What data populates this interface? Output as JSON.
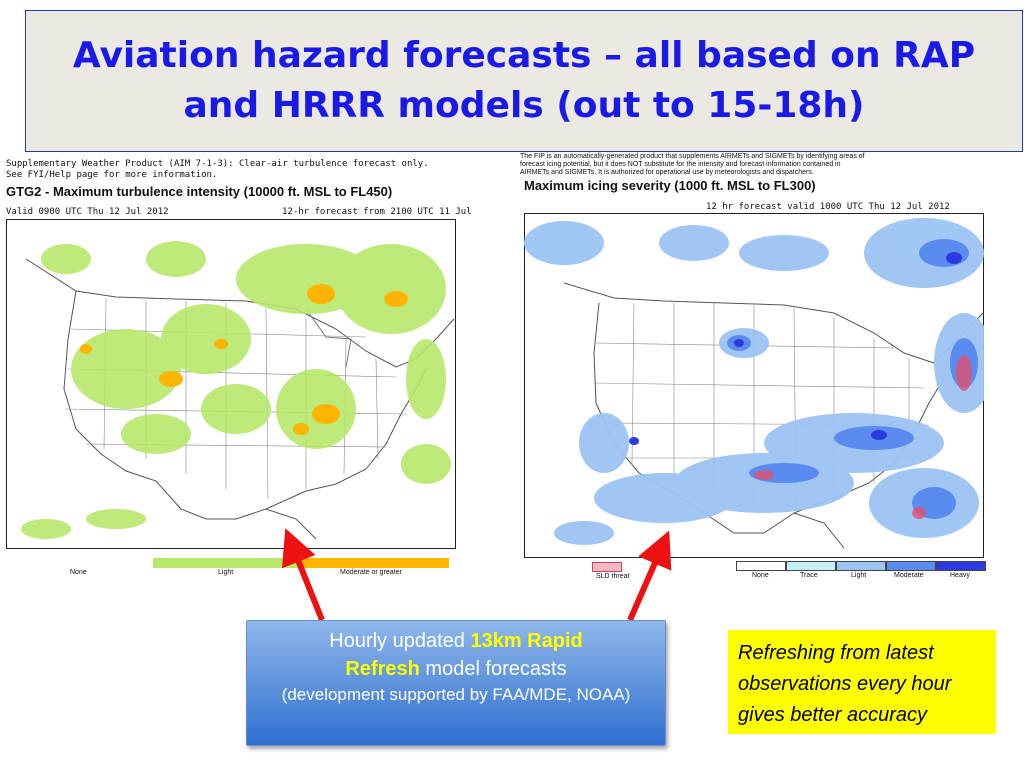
{
  "title": "Aviation hazard forecasts – all based on RAP and HRRR models (out to 15-18h)",
  "left_panel": {
    "header_line1": "Supplementary Weather Product (AIM 7-1-3): Clear-air turbulence forecast only.",
    "header_line2": "See FYI/Help page for more information.",
    "product_title": "GTG2 - Maximum turbulence intensity (10000 ft. MSL to FL450)",
    "valid_text": "Valid 0900 UTC Thu 12 Jul 2012",
    "forecast_text": "12-hr forecast from 2100 UTC 11 Jul",
    "legend": [
      {
        "label": "None",
        "color": "#ffffff"
      },
      {
        "label": "Light",
        "color": "#b6e86a"
      },
      {
        "label": "Moderate or greater",
        "color": "#ffb400"
      }
    ]
  },
  "right_panel": {
    "header_line1": "The FIP is an automatically-generated product that supplements AIRMETs and SIGMETs by identifying areas of",
    "header_line2": "forecast icing potential, but it does NOT substitute for the intensity and forecast information contained in",
    "header_line3": "AIRMETs and SIGMETs.  It is authorized for operational use by meteorologists and dispatchers.",
    "product_title": "Maximum icing severity (1000 ft. MSL to FL300)",
    "forecast_text": "12 hr forecast valid 1000 UTC Thu 12 Jul 2012",
    "sld_label": "SLD threat",
    "legend": [
      {
        "label": "None",
        "color": "#ffffff"
      },
      {
        "label": "Trace",
        "color": "#c8f0f8"
      },
      {
        "label": "Light",
        "color": "#9cc4f4"
      },
      {
        "label": "Moderate",
        "color": "#5a8cf0"
      },
      {
        "label": "Heavy",
        "color": "#2a3ae0"
      }
    ]
  },
  "callout": {
    "prefix": "Hourly updated ",
    "highlight1": "13km Rapid",
    "highlight2": "Refresh",
    "suffix": " model forecasts",
    "sub": "(development supported by FAA/MDE, NOAA)"
  },
  "note": "Refreshing from latest observations every hour gives better accuracy",
  "colors": {
    "title": "#1a1ae6",
    "arrow": "#ee1111",
    "note_bg": "#ffff00"
  }
}
